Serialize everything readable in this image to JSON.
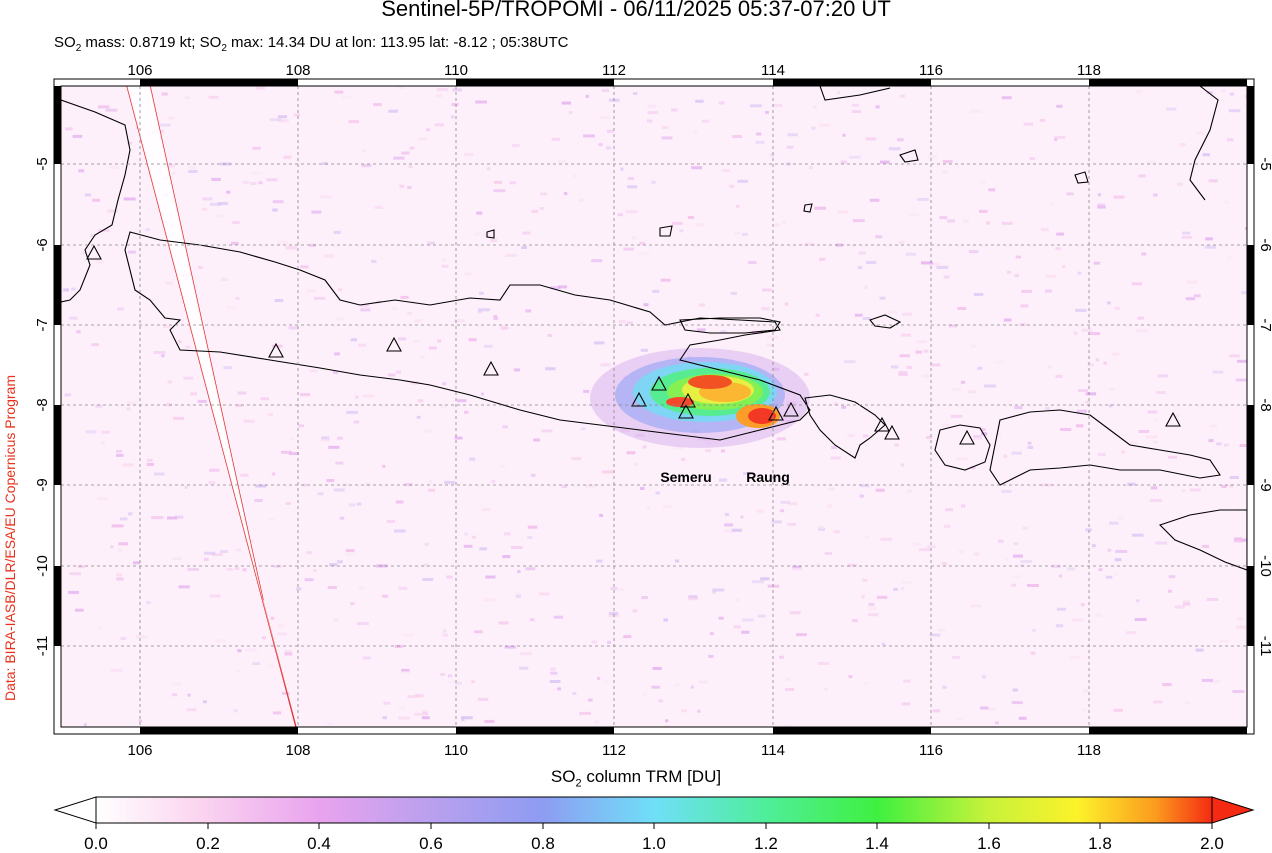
{
  "title": "Sentinel-5P/TROPOMI - 06/11/2025 05:37-07:20 UT",
  "subtitle": {
    "p1": "SO",
    "s1": "2",
    "p2": " mass: 0.8719 kt; SO",
    "s2": "2",
    "p3": " max: 14.34 DU at lon: 113.95 lat: -8.12 ; 05:38UTC"
  },
  "credit": "Data: BIRA-IASB/DLR/ESA/EU Copernicus Program",
  "map": {
    "lon_ticks": [
      "106",
      "108",
      "110",
      "112",
      "114",
      "116",
      "118"
    ],
    "lat_ticks": [
      "-5",
      "-6",
      "-7",
      "-8",
      "-9",
      "-10",
      "-11"
    ],
    "volcano_labels": [
      "Semeru",
      "Raung"
    ]
  },
  "colorbar": {
    "label_p1": "SO",
    "label_sub": "2",
    "label_p2": " column TRM [DU]",
    "ticks": [
      "0.0",
      "0.2",
      "0.4",
      "0.6",
      "0.8",
      "1.0",
      "1.2",
      "1.4",
      "1.6",
      "1.8",
      "2.0"
    ]
  },
  "colors": {
    "credit": "#e8321e",
    "swath_edge": "#e02020",
    "colorbar_stops": [
      "#ffffff",
      "#fbd6f0",
      "#e9a3ee",
      "#b9a0ee",
      "#8e9cf2",
      "#6fdff8",
      "#4fee9a",
      "#3ff040",
      "#c8f23a",
      "#fcf22a",
      "#fb9a1e",
      "#f52a12"
    ]
  }
}
